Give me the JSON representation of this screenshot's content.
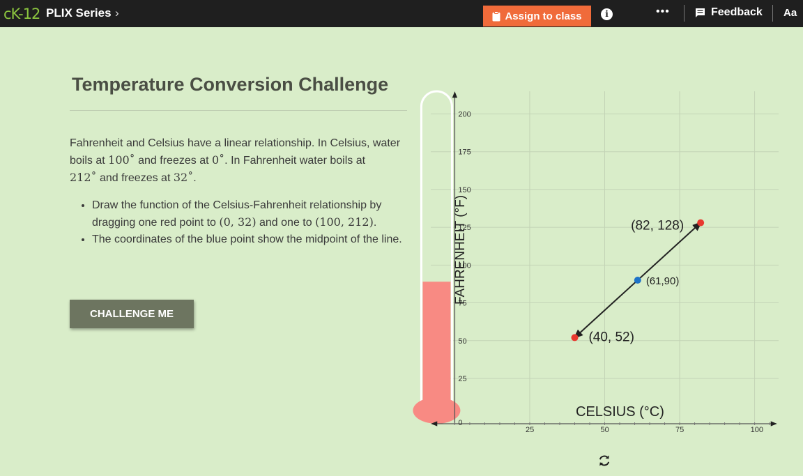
{
  "topbar": {
    "logo": "cK-12",
    "series": "PLIX Series",
    "series_chevron": "›",
    "assign_label": "Assign to class",
    "assign_icon": "clipboard-icon",
    "info_icon": "info-icon",
    "more_label": "•••",
    "feedback_label": "Feedback",
    "font_label": "Aa"
  },
  "content": {
    "title": "Temperature Conversion Challenge",
    "desc": {
      "p1": "Fahrenheit and Celsius have a linear relationship.  In Celsius, water boils at ",
      "v1": "100˚",
      "p2": " and freezes at ",
      "v2": "0˚",
      "p3": ".  In Fahrenheit water boils at ",
      "v3": "212˚",
      "p4": " and freezes at ",
      "v4": "32˚",
      "p5": "."
    },
    "bullet1": {
      "a": "Draw the function of the Celsius-Fahrenheit relationship by dragging one red point to ",
      "m1": "(0, 32)",
      "b": " and one to ",
      "m2": "(100, 212)",
      "c": "."
    },
    "bullet2": "The coordinates of the blue point show the midpoint of the line.",
    "challenge_label": "CHALLENGE ME"
  },
  "chart_data": {
    "type": "scatter",
    "xlabel": "CELSIUS (°C)",
    "ylabel": "FAHRENHEIT (°F)",
    "xlim": [
      -8,
      108
    ],
    "ylim": [
      -5,
      215
    ],
    "x_ticks": [
      0,
      25,
      50,
      75,
      100
    ],
    "y_ticks": [
      0,
      25,
      50,
      75,
      100,
      125,
      150,
      175,
      200
    ],
    "grid": true,
    "thermometer_level": 89,
    "line": {
      "from": [
        40,
        52
      ],
      "to": [
        82,
        128
      ]
    },
    "points": [
      {
        "x": 40,
        "y": 52,
        "label": "(40, 52)",
        "color": "#e8392f"
      },
      {
        "x": 82,
        "y": 128,
        "label": "(82, 128)",
        "color": "#e8392f"
      },
      {
        "x": 61,
        "y": 90,
        "label": "(61,90)",
        "color": "#1e73c8"
      }
    ]
  },
  "colors": {
    "background": "#d9edc9",
    "topbar": "#1f1f1f",
    "accent": "#f06b3a",
    "button": "#6d7560",
    "mercury": "#f88a83"
  },
  "refresh_icon": "refresh-icon"
}
